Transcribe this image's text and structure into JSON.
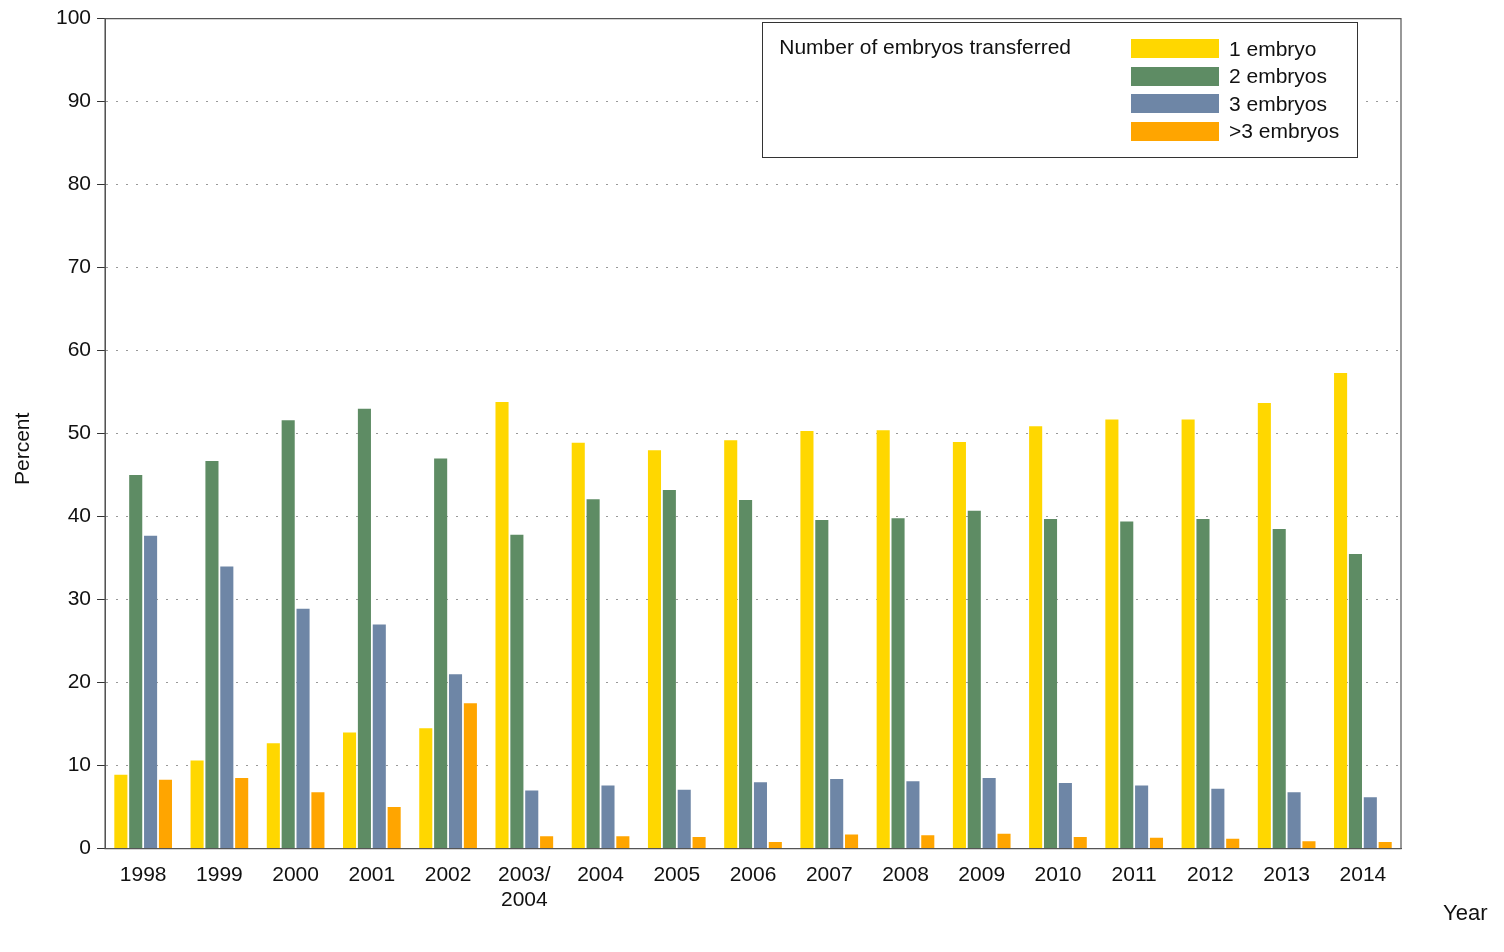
{
  "chart_data": {
    "type": "bar",
    "xlabel": "Year",
    "ylabel": "Percent",
    "legend_title": "Number of embryos transferred",
    "legend": "top right",
    "grid": "y",
    "categories": [
      "1998",
      "1999",
      "2000",
      "2001",
      "2002",
      "2003/\n2004",
      "2004",
      "2005",
      "2006",
      "2007",
      "2008",
      "2009",
      "2010",
      "2011",
      "2012",
      "2013",
      "2014"
    ],
    "ylim": [
      0,
      100
    ],
    "yticks": [
      0,
      10,
      20,
      30,
      40,
      50,
      60,
      70,
      80,
      90,
      100
    ],
    "series": [
      {
        "name": "1 embryo",
        "color": "#ffd700",
        "values": [
          8.9,
          10.6,
          12.7,
          14.0,
          14.5,
          53.8,
          48.9,
          48.0,
          49.2,
          50.3,
          50.4,
          49.0,
          50.9,
          51.7,
          51.7,
          53.7,
          57.3
        ]
      },
      {
        "name": "2 embryos",
        "color": "#5e8c64",
        "values": [
          45.0,
          46.7,
          51.6,
          53.0,
          47.0,
          37.8,
          42.1,
          43.2,
          42.0,
          39.6,
          39.8,
          40.7,
          39.7,
          39.4,
          39.7,
          38.5,
          35.5
        ]
      },
      {
        "name": "3 embryos",
        "color": "#6e86a6",
        "values": [
          37.7,
          34.0,
          28.9,
          27.0,
          21.0,
          7.0,
          7.6,
          7.1,
          8.0,
          8.4,
          8.1,
          8.5,
          7.9,
          7.6,
          7.2,
          6.8,
          6.2
        ]
      },
      {
        "name": ">3 embryos",
        "color": "#ffa500",
        "values": [
          8.3,
          8.5,
          6.8,
          5.0,
          17.5,
          1.5,
          1.5,
          1.4,
          0.8,
          1.7,
          1.6,
          1.8,
          1.4,
          1.3,
          1.2,
          0.9,
          0.8
        ]
      }
    ]
  }
}
